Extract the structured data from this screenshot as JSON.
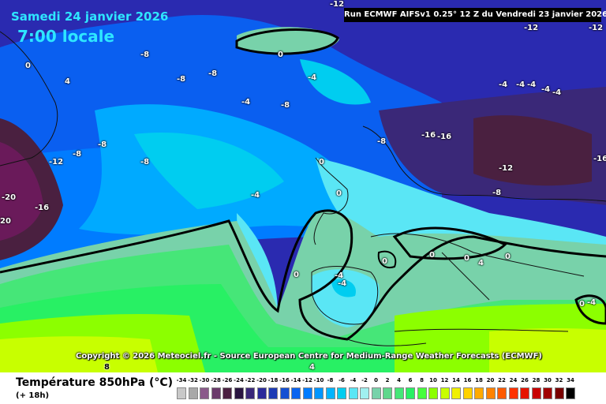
{
  "header": {
    "date": "Samedi 24 janvier 2026",
    "time": "7:00 locale",
    "run": "Run ECMWF AIFSv1 0.25° 12 Z du Vendredi 23 janvier 2026"
  },
  "copyright": "Copyright © 2026 Meteociel.fr - Source European Centre for Medium-Range Weather Forecasts (ECMWF)",
  "footer": {
    "title": "Température 850hPa (°C)",
    "subtitle": "(+ 18h)"
  },
  "legend": {
    "ticks": [
      "-34",
      "-32",
      "-30",
      "-28",
      "-26",
      "-24",
      "-22",
      "-20",
      "-18",
      "-16",
      "-14",
      "-12",
      "-10",
      "-8",
      "-6",
      "-4",
      "-2",
      "0",
      "2",
      "4",
      "6",
      "8",
      "10",
      "12",
      "14",
      "16",
      "18",
      "20",
      "22",
      "24",
      "26",
      "28",
      "30",
      "32",
      "34"
    ],
    "colors": [
      "#c8c8c8",
      "#a8a8a8",
      "#8a5a8a",
      "#6a3a6a",
      "#4a2040",
      "#2a1540",
      "#3a2878",
      "#2a2a9a",
      "#1e3cb4",
      "#1450d2",
      "#0a64f0",
      "#007cff",
      "#0096ff",
      "#00b4ff",
      "#00cdf0",
      "#5ae6f5",
      "#a0f0f0",
      "#78d2aa",
      "#5fd78c",
      "#46e678",
      "#28f064",
      "#46ff3c",
      "#8cff00",
      "#c8ff00",
      "#f0f000",
      "#ffd200",
      "#ffaa00",
      "#ff8200",
      "#ff5a00",
      "#ff3200",
      "#e61400",
      "#c80000",
      "#a00000",
      "#780000",
      "#000000"
    ]
  },
  "map_labels": [
    {
      "text": "-12",
      "tone": "light"
    },
    {
      "text": "-12",
      "tone": "light"
    },
    {
      "text": "-12",
      "tone": "light"
    },
    {
      "text": "0",
      "tone": "light"
    },
    {
      "text": "4",
      "tone": "light"
    },
    {
      "text": "-8",
      "tone": "light"
    },
    {
      "text": "0",
      "tone": "light"
    },
    {
      "text": "-8",
      "tone": "light"
    },
    {
      "text": "-8",
      "tone": "light"
    },
    {
      "text": "-4",
      "tone": "light"
    },
    {
      "text": "-4",
      "tone": "light"
    },
    {
      "text": "-8",
      "tone": "light"
    },
    {
      "text": "-8",
      "tone": "light"
    },
    {
      "text": "-8",
      "tone": "light"
    },
    {
      "text": "-8",
      "tone": "light"
    },
    {
      "text": "-12",
      "tone": "light"
    },
    {
      "text": "-20",
      "tone": "light"
    },
    {
      "text": "20",
      "tone": "light"
    },
    {
      "text": "-16",
      "tone": "light"
    },
    {
      "text": "-4",
      "tone": "light"
    },
    {
      "text": "0",
      "tone": "light"
    },
    {
      "text": "0",
      "tone": "light"
    },
    {
      "text": "-8",
      "tone": "light"
    },
    {
      "text": "-16",
      "tone": "light"
    },
    {
      "text": "-16",
      "tone": "light"
    },
    {
      "text": "-12",
      "tone": "light"
    },
    {
      "text": "-8",
      "tone": "light"
    },
    {
      "text": "-16",
      "tone": "light"
    },
    {
      "text": "-4",
      "tone": "light"
    },
    {
      "text": "-4",
      "tone": "light"
    },
    {
      "text": "-4",
      "tone": "light"
    },
    {
      "text": "-4",
      "tone": "light"
    },
    {
      "text": "-4",
      "tone": "light"
    },
    {
      "text": "0",
      "tone": "light"
    },
    {
      "text": "-4",
      "tone": "light"
    },
    {
      "text": "-4",
      "tone": "light"
    },
    {
      "text": "0",
      "tone": "light"
    },
    {
      "text": "0",
      "tone": "light"
    },
    {
      "text": "0",
      "tone": "light"
    },
    {
      "text": "4",
      "tone": "light"
    },
    {
      "text": "0",
      "tone": "light"
    },
    {
      "text": "0",
      "tone": "light"
    },
    {
      "text": "-4",
      "tone": "light"
    },
    {
      "text": "8",
      "tone": "dark"
    },
    {
      "text": "4",
      "tone": "light"
    }
  ]
}
